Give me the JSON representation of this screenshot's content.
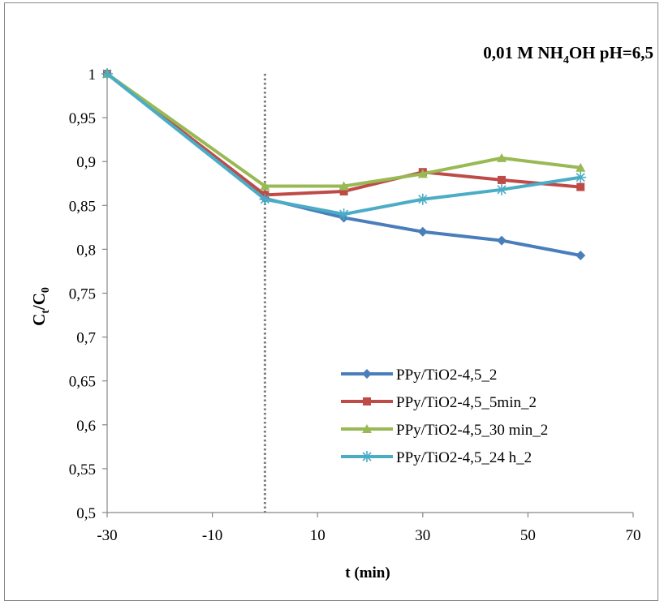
{
  "chart_data": {
    "type": "line",
    "title_parts": {
      "pre": "0,01 M NH",
      "sub": "4",
      "post": "OH pH=6,5"
    },
    "xlabel": "t (min)",
    "ylabel_parts": {
      "c1": "C",
      "s1": "t",
      "slash": "/C",
      "s2": "0"
    },
    "xlim": [
      -30,
      70
    ],
    "ylim": [
      0.5,
      1.0
    ],
    "x_ticks": [
      -30,
      -10,
      10,
      30,
      50,
      70
    ],
    "x_tick_labels": [
      "-30",
      "-10",
      "10",
      "30",
      "50",
      "70"
    ],
    "y_ticks": [
      0.5,
      0.55,
      0.6,
      0.65,
      0.7,
      0.75,
      0.8,
      0.85,
      0.9,
      0.95,
      1.0
    ],
    "y_tick_labels": [
      "0,5",
      "0,55",
      "0,6",
      "0,65",
      "0,7",
      "0,75",
      "0,8",
      "0,85",
      "0,9",
      "0,95",
      "1"
    ],
    "vertical_reference_line": {
      "x": 0,
      "style": "dotted",
      "color": "#7f7f7f"
    },
    "grid": false,
    "legend_position": "bottom-right",
    "series": [
      {
        "name": "PPy/TiO2-4,5_2",
        "color": "#4a7ebb",
        "marker": "diamond",
        "x": [
          -30,
          0,
          15,
          30,
          45,
          60
        ],
        "y": [
          1.0,
          0.858,
          0.836,
          0.82,
          0.81,
          0.793
        ]
      },
      {
        "name": "PPy/TiO2-4,5_5min_2",
        "color": "#be4b48",
        "marker": "square",
        "x": [
          -30,
          0,
          15,
          30,
          45,
          60
        ],
        "y": [
          1.0,
          0.862,
          0.866,
          0.888,
          0.879,
          0.871
        ]
      },
      {
        "name": "PPy/TiO2-4,5_30 min_2",
        "color": "#98b954",
        "marker": "triangle",
        "x": [
          -30,
          0,
          15,
          30,
          45,
          60
        ],
        "y": [
          1.0,
          0.872,
          0.872,
          0.886,
          0.904,
          0.893
        ]
      },
      {
        "name": "PPy/TiO2-4,5_24 h_2",
        "color": "#4bacc6",
        "marker": "star",
        "x": [
          -30,
          0,
          15,
          30,
          45,
          60
        ],
        "y": [
          1.0,
          0.857,
          0.84,
          0.857,
          0.868,
          0.882
        ]
      }
    ]
  }
}
